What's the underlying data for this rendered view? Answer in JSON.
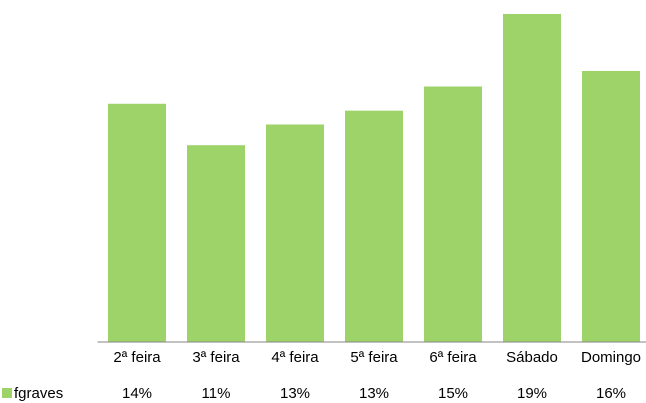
{
  "chart_data": {
    "type": "bar",
    "categories": [
      "2ª feira",
      "3ª feira",
      "4ª feira",
      "5ª feira",
      "6ª feira",
      "Sábado",
      "Domingo"
    ],
    "series": [
      {
        "name": "fgraves",
        "color": "#9ed36a",
        "values": [
          13.8,
          11.4,
          12.6,
          13.4,
          14.8,
          19,
          15.7
        ],
        "value_labels": [
          "14%",
          "11%",
          "13%",
          "13%",
          "15%",
          "19%",
          "16%"
        ]
      }
    ],
    "ylim": [
      0,
      19
    ]
  }
}
